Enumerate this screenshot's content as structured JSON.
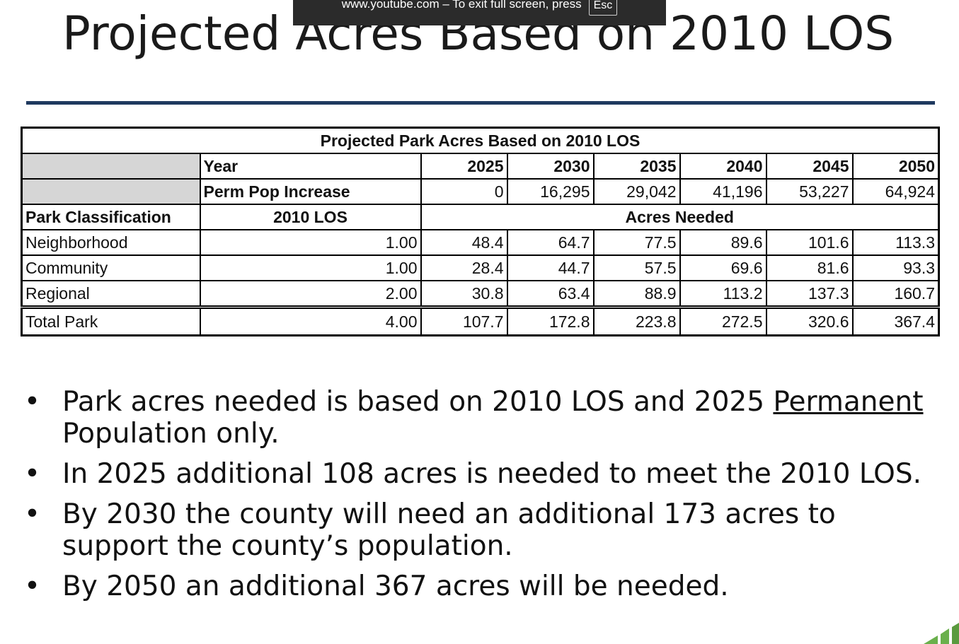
{
  "slide": {
    "title": "Projected Acres Based on 2010 LOS"
  },
  "fullscreen_notice": {
    "text": "www.youtube.com – To exit full screen, press",
    "key": "Esc"
  },
  "table": {
    "caption": "Projected Park Acres Based on 2010 LOS",
    "year_label": "Year",
    "pop_label": "Perm Pop Increase",
    "years": [
      "2025",
      "2030",
      "2035",
      "2040",
      "2045",
      "2050"
    ],
    "pop_increase": [
      "0",
      "16,295",
      "29,042",
      "41,196",
      "53,227",
      "64,924"
    ],
    "class_header": "Park Classification",
    "los_header": "2010 LOS",
    "acres_header": "Acres Needed",
    "rows": [
      {
        "name": "Neighborhood",
        "los": "1.00",
        "values": [
          "48.4",
          "64.7",
          "77.5",
          "89.6",
          "101.6",
          "113.3"
        ]
      },
      {
        "name": "Community",
        "los": "1.00",
        "values": [
          "28.4",
          "44.7",
          "57.5",
          "69.6",
          "81.6",
          "93.3"
        ]
      },
      {
        "name": "Regional",
        "los": "2.00",
        "values": [
          "30.8",
          "63.4",
          "88.9",
          "113.2",
          "137.3",
          "160.7"
        ]
      },
      {
        "name": "Total Park",
        "los": "4.00",
        "values": [
          "107.7",
          "172.8",
          "223.8",
          "272.5",
          "320.6",
          "367.4"
        ]
      }
    ]
  },
  "bullets": [
    {
      "parts": [
        "Park acres needed is based on 2010 LOS and 2025 ",
        "Permanent",
        " Population only."
      ]
    },
    {
      "text": "In 2025 additional 108 acres is needed to meet the 2010 LOS."
    },
    {
      "text": "By 2030 the county will need an additional 173 acres to support the county’s population."
    },
    {
      "text": "By 2050 an additional 367 acres will be needed."
    }
  ],
  "bullet_glyph": "•",
  "colors": {
    "rule": "#1f3a5f",
    "header_shade": "#d6d6d6",
    "banner_bg": "#2b2b2b",
    "logo_green": "#6ab04c"
  }
}
